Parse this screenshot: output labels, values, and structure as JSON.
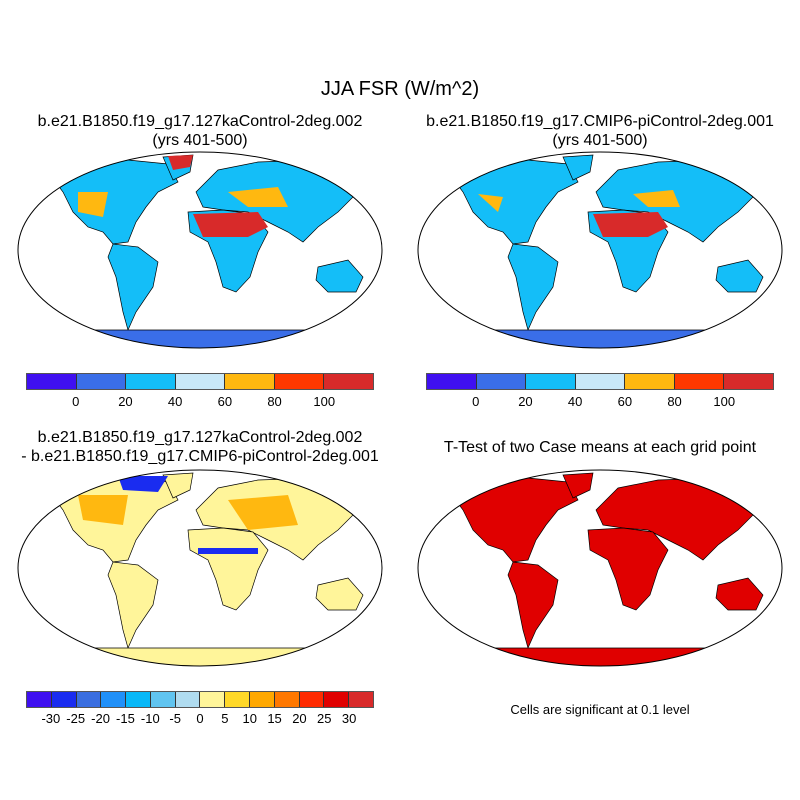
{
  "title": "JJA FSR (W/m^2)",
  "panels": {
    "top_left": {
      "line1": "b.e21.B1850.f19_g17.127kaControl-2deg.002",
      "line2": "(yrs 401-500)"
    },
    "top_right": {
      "line1": "b.e21.B1850.f19_g17.CMIP6-piControl-2deg.001",
      "line2": "(yrs 401-500)"
    },
    "bottom_left": {
      "line1": "b.e21.B1850.f19_g17.127kaControl-2deg.002",
      "line2": "- b.e21.B1850.f19_g17.CMIP6-piControl-2deg.001"
    },
    "bottom_right": {
      "line1": "T-Test of two Case means at each grid point",
      "note": "Cells are significant at 0.1 level"
    }
  },
  "colorbar_abs": {
    "labels": [
      "0",
      "20",
      "40",
      "60",
      "80",
      "100"
    ],
    "colors": [
      "#3f10f0",
      "#3a6ee8",
      "#14bef8",
      "#c8e8f8",
      "#ffb810",
      "#ff3800",
      "#d82a2a"
    ]
  },
  "colorbar_diff": {
    "labels": [
      "-30",
      "-25",
      "-20",
      "-15",
      "-10",
      "-5",
      "0",
      "5",
      "10",
      "15",
      "20",
      "25",
      "30"
    ],
    "colors": [
      "#3f10f0",
      "#1a2cf0",
      "#3a6ee0",
      "#2090f8",
      "#08b8f8",
      "#60c4f0",
      "#b0dcf0",
      "#fff59a",
      "#ffd828",
      "#ffa800",
      "#ff7800",
      "#ff2a00",
      "#e00000",
      "#d82a2a"
    ]
  },
  "map_colors": {
    "abs_land": "#14bef8",
    "abs_hot": "#d82a2a",
    "abs_warm": "#ffb810",
    "antarctica": "#3a6ee8",
    "diff_land": "#fff59a",
    "diff_warm": "#ffb810",
    "diff_cool": "#1a2cf0",
    "ttest": "#e00000"
  }
}
